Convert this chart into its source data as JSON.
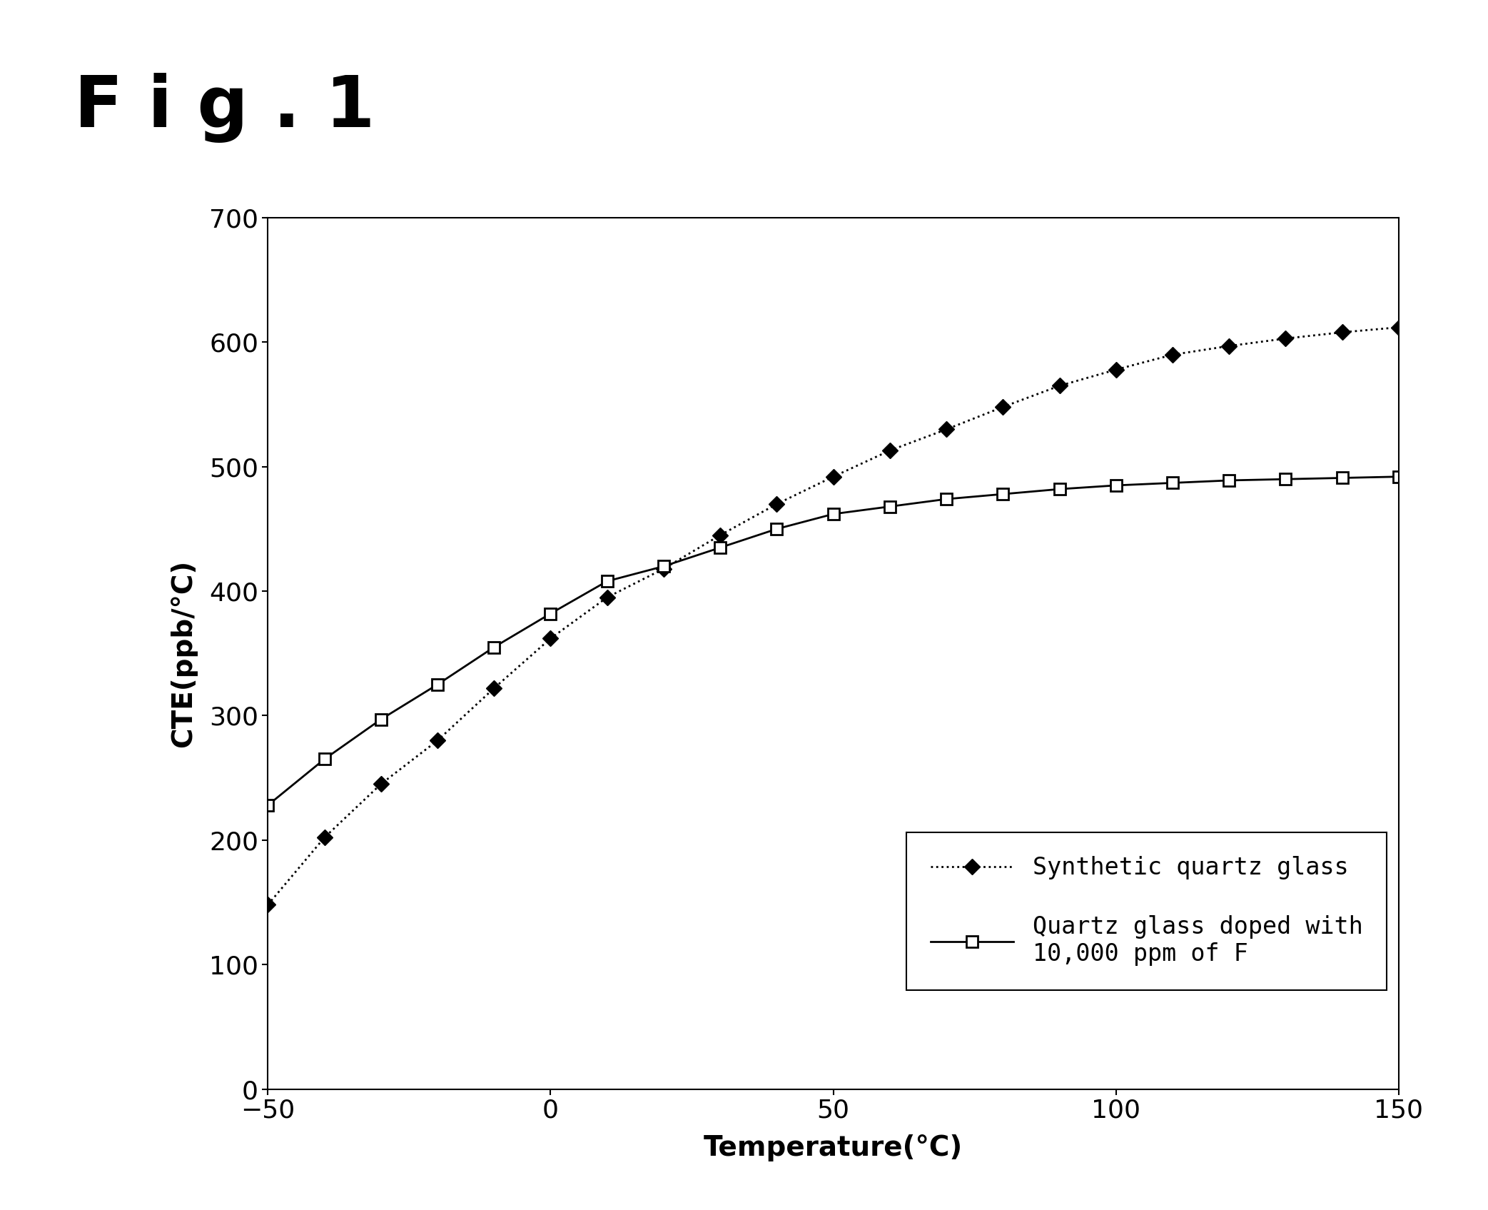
{
  "title": "F i g . 1",
  "xlabel": "Temperature(°C)",
  "ylabel": "CTE(ppb/°C)",
  "xlim": [
    -50,
    150
  ],
  "ylim": [
    0,
    700
  ],
  "xticks": [
    -50,
    0,
    50,
    100,
    150
  ],
  "yticks": [
    0,
    100,
    200,
    300,
    400,
    500,
    600,
    700
  ],
  "series1_name": "Synthetic quartz glass",
  "series1_x": [
    -50,
    -40,
    -30,
    -20,
    -10,
    0,
    10,
    20,
    30,
    40,
    50,
    60,
    70,
    80,
    90,
    100,
    110,
    120,
    130,
    140,
    150
  ],
  "series1_y": [
    148,
    202,
    245,
    280,
    322,
    362,
    395,
    418,
    445,
    470,
    492,
    513,
    530,
    548,
    565,
    578,
    590,
    597,
    603,
    608,
    612
  ],
  "series2_name": "Quartz glass doped with\n10,000 ppm of F",
  "series2_x": [
    -50,
    -40,
    -30,
    -20,
    -10,
    0,
    10,
    20,
    30,
    40,
    50,
    60,
    70,
    80,
    90,
    100,
    110,
    120,
    130,
    140,
    150
  ],
  "series2_y": [
    228,
    265,
    297,
    325,
    355,
    382,
    408,
    420,
    435,
    450,
    462,
    468,
    474,
    478,
    482,
    485,
    487,
    489,
    490,
    491,
    492
  ],
  "line1_color": "#000000",
  "line2_color": "#000000",
  "bg_color": "#ffffff",
  "title_fontsize": 72,
  "axis_label_fontsize": 28,
  "tick_fontsize": 26,
  "legend_fontsize": 24
}
